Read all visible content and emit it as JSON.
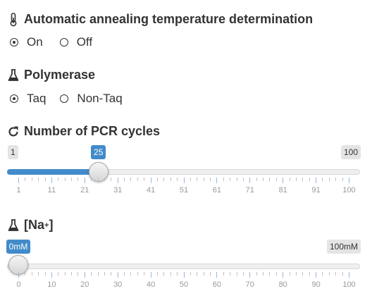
{
  "annealing": {
    "title": "Automatic annealing temperature determination",
    "icon": "thermometer-icon",
    "options": [
      {
        "label": "On",
        "checked": true
      },
      {
        "label": "Off",
        "checked": false
      }
    ]
  },
  "polymerase": {
    "title": "Polymerase",
    "icon": "flask-icon",
    "options": [
      {
        "label": "Taq",
        "checked": true
      },
      {
        "label": "Non-Taq",
        "checked": false
      }
    ]
  },
  "pcr_cycles": {
    "title": "Number of PCR cycles",
    "icon": "refresh-icon",
    "min": 1,
    "max": 100,
    "value": 25,
    "min_label": "1",
    "max_label": "100",
    "value_label": "25",
    "tick_labels": [
      "1",
      "11",
      "21",
      "31",
      "41",
      "51",
      "61",
      "71",
      "81",
      "91",
      "100"
    ]
  },
  "na": {
    "title": "[Na",
    "superscript": "+",
    "title_end": "]",
    "icon": "flask-icon",
    "min": 0,
    "max": 100,
    "value": 0,
    "value_label": "0mM",
    "max_label": "100mM",
    "tick_labels": [
      "0",
      "10",
      "20",
      "30",
      "40",
      "50",
      "60",
      "70",
      "80",
      "90",
      "100"
    ]
  },
  "colors": {
    "accent": "#428bca",
    "text": "#333333"
  }
}
